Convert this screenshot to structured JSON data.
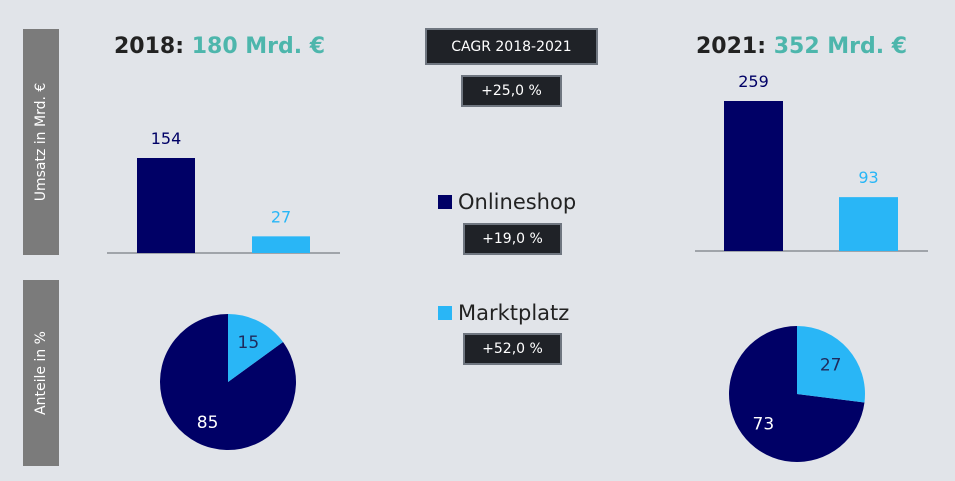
{
  "side_labels": {
    "top": "Umsatz in Mrd. €",
    "bottom": "Anteile in %"
  },
  "titles": [
    {
      "year": "2018:",
      "total": "180 Mrd. €"
    },
    {
      "year": "2021:",
      "total": "352 Mrd. €"
    }
  ],
  "cagr": {
    "header": "CAGR 2018-2021",
    "total": "+25,0 %",
    "onlineshop": "+19,0 %",
    "marktplatz": "+52,0 %"
  },
  "legend": [
    {
      "label": "Onlineshop",
      "color": "#000066"
    },
    {
      "label": "Marktplatz",
      "color": "#29b6f6"
    }
  ],
  "chart_data": [
    {
      "type": "bar",
      "title": "2018: 180 Mrd. €",
      "categories": [
        "Onlineshop",
        "Marktplatz"
      ],
      "values": [
        154,
        27
      ],
      "ylim": [
        0,
        280
      ],
      "colors": [
        "#000066",
        "#29b6f6"
      ]
    },
    {
      "type": "bar",
      "title": "2021: 352 Mrd. €",
      "categories": [
        "Onlineshop",
        "Marktplatz"
      ],
      "values": [
        259,
        93
      ],
      "ylim": [
        0,
        280
      ],
      "colors": [
        "#000066",
        "#29b6f6"
      ]
    },
    {
      "type": "pie",
      "title": "2018",
      "labels": [
        "Onlineshop",
        "Marktplatz"
      ],
      "values": [
        85,
        15
      ],
      "colors": [
        "#000066",
        "#29b6f6"
      ]
    },
    {
      "type": "pie",
      "title": "2021",
      "labels": [
        "Onlineshop",
        "Marktplatz"
      ],
      "values": [
        73,
        27
      ],
      "colors": [
        "#000066",
        "#29b6f6"
      ]
    }
  ]
}
